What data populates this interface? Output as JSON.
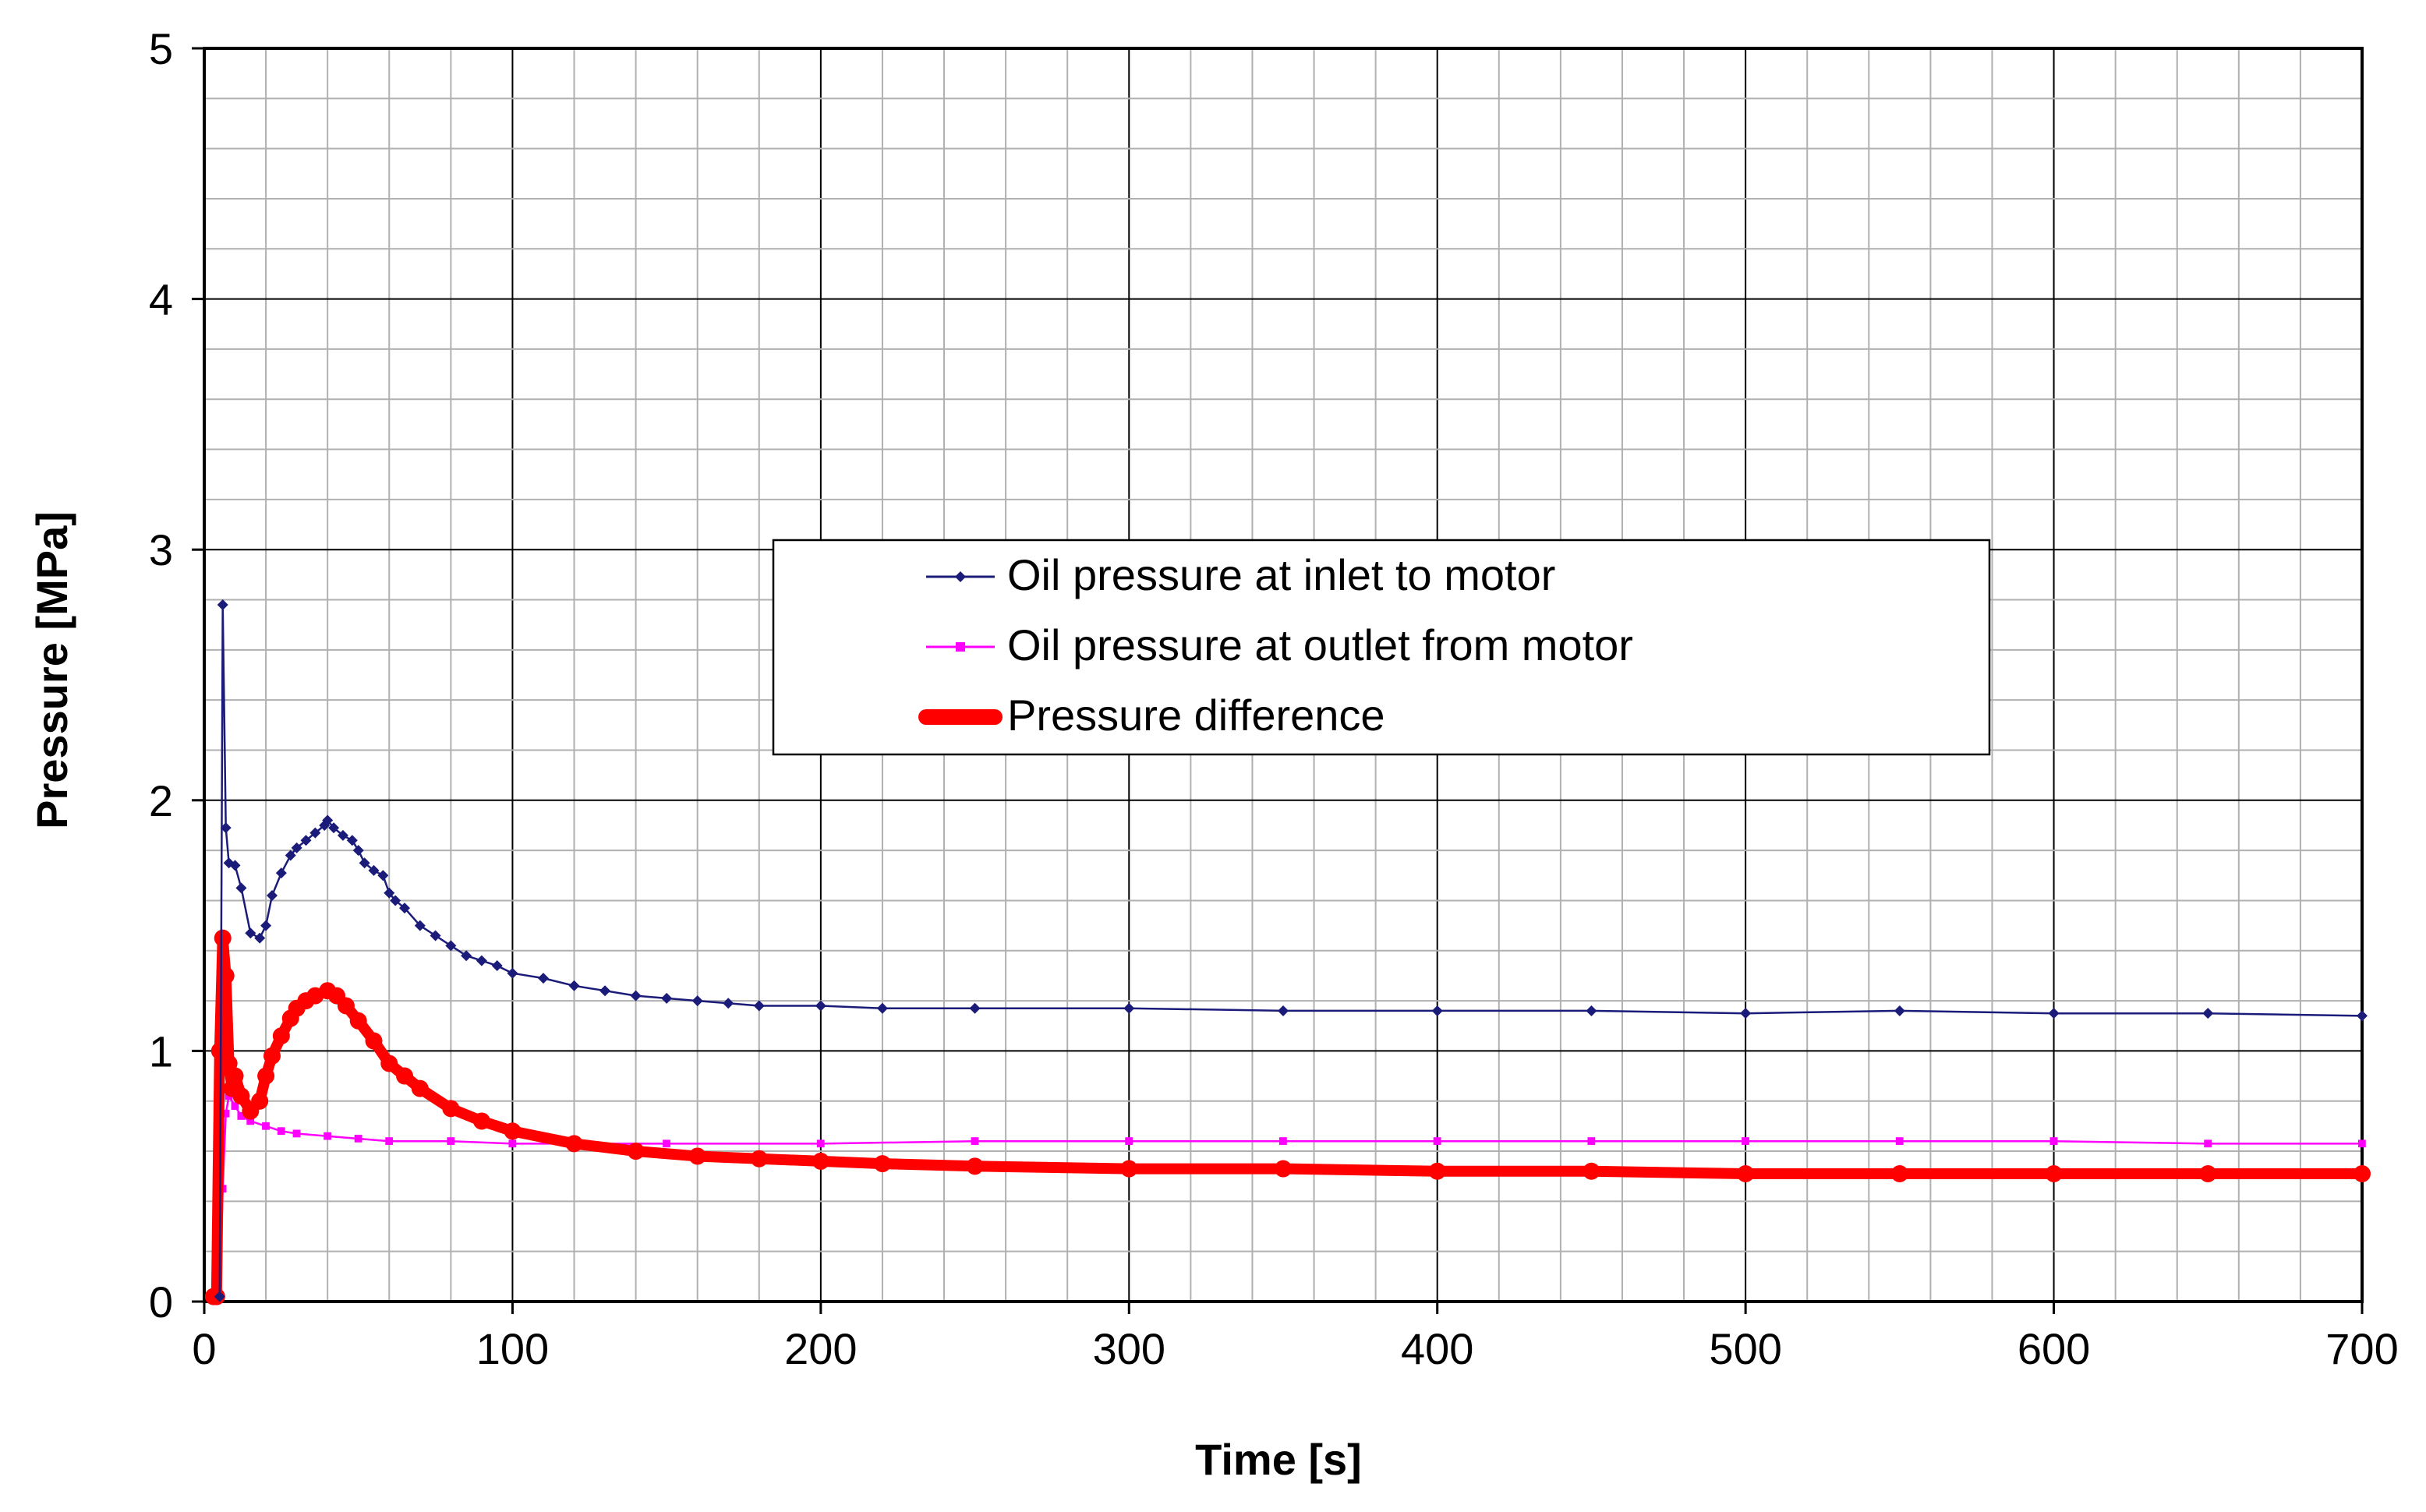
{
  "chart_data": {
    "type": "line",
    "title": "",
    "xlabel": "Time [s]",
    "ylabel": "Pressure [MPa]",
    "xlim": [
      0,
      700
    ],
    "ylim": [
      0,
      5
    ],
    "grid": true,
    "legend_position": "center",
    "x_ticks": [
      "0",
      "100",
      "200",
      "300",
      "400",
      "500",
      "600",
      "700"
    ],
    "y_ticks": [
      "0",
      "1",
      "2",
      "3",
      "4",
      "5"
    ],
    "series": [
      {
        "name": "Oil pressure at inlet to motor",
        "color": "#1b1b7a",
        "marker": "diamond",
        "x": [
          5,
          6,
          7,
          8,
          10,
          12,
          15,
          18,
          20,
          22,
          25,
          28,
          30,
          33,
          36,
          39,
          40,
          42,
          45,
          48,
          50,
          52,
          55,
          58,
          60,
          62,
          65,
          70,
          75,
          80,
          85,
          90,
          95,
          100,
          110,
          120,
          130,
          140,
          150,
          160,
          170,
          180,
          200,
          220,
          250,
          300,
          350,
          400,
          450,
          500,
          550,
          600,
          650,
          700
        ],
        "y": [
          0.02,
          2.78,
          1.89,
          1.75,
          1.74,
          1.65,
          1.47,
          1.45,
          1.5,
          1.62,
          1.71,
          1.78,
          1.81,
          1.84,
          1.87,
          1.9,
          1.92,
          1.89,
          1.86,
          1.84,
          1.8,
          1.75,
          1.72,
          1.7,
          1.63,
          1.6,
          1.57,
          1.5,
          1.46,
          1.42,
          1.38,
          1.36,
          1.34,
          1.31,
          1.29,
          1.26,
          1.24,
          1.22,
          1.21,
          1.2,
          1.19,
          1.18,
          1.18,
          1.17,
          1.17,
          1.17,
          1.16,
          1.16,
          1.16,
          1.15,
          1.16,
          1.15,
          1.15,
          1.14
        ]
      },
      {
        "name": "Oil pressure at outlet from motor",
        "color": "#ff00ff",
        "marker": "square",
        "x": [
          5,
          6,
          7,
          8,
          10,
          12,
          15,
          20,
          25,
          30,
          40,
          50,
          60,
          80,
          100,
          150,
          200,
          250,
          300,
          350,
          400,
          450,
          500,
          550,
          600,
          650,
          700
        ],
        "y": [
          0.02,
          0.45,
          0.75,
          0.82,
          0.78,
          0.74,
          0.72,
          0.7,
          0.68,
          0.67,
          0.66,
          0.65,
          0.64,
          0.64,
          0.63,
          0.63,
          0.63,
          0.64,
          0.64,
          0.64,
          0.64,
          0.64,
          0.64,
          0.64,
          0.64,
          0.63,
          0.63
        ]
      },
      {
        "name": "Pressure difference",
        "color": "#ff0000",
        "marker": "circle",
        "x": [
          3,
          4,
          5,
          6,
          7,
          8,
          9,
          10,
          12,
          15,
          18,
          20,
          22,
          25,
          28,
          30,
          33,
          36,
          40,
          43,
          46,
          50,
          55,
          60,
          65,
          70,
          80,
          90,
          100,
          120,
          140,
          160,
          180,
          200,
          220,
          250,
          300,
          350,
          400,
          450,
          500,
          550,
          600,
          650,
          700
        ],
        "y": [
          0.02,
          0.02,
          1.0,
          1.45,
          1.3,
          0.95,
          0.85,
          0.9,
          0.82,
          0.76,
          0.8,
          0.9,
          0.98,
          1.06,
          1.13,
          1.17,
          1.2,
          1.22,
          1.24,
          1.22,
          1.18,
          1.12,
          1.04,
          0.95,
          0.9,
          0.85,
          0.77,
          0.72,
          0.68,
          0.63,
          0.6,
          0.58,
          0.57,
          0.56,
          0.55,
          0.54,
          0.53,
          0.53,
          0.52,
          0.52,
          0.51,
          0.51,
          0.51,
          0.51,
          0.51
        ]
      }
    ]
  }
}
